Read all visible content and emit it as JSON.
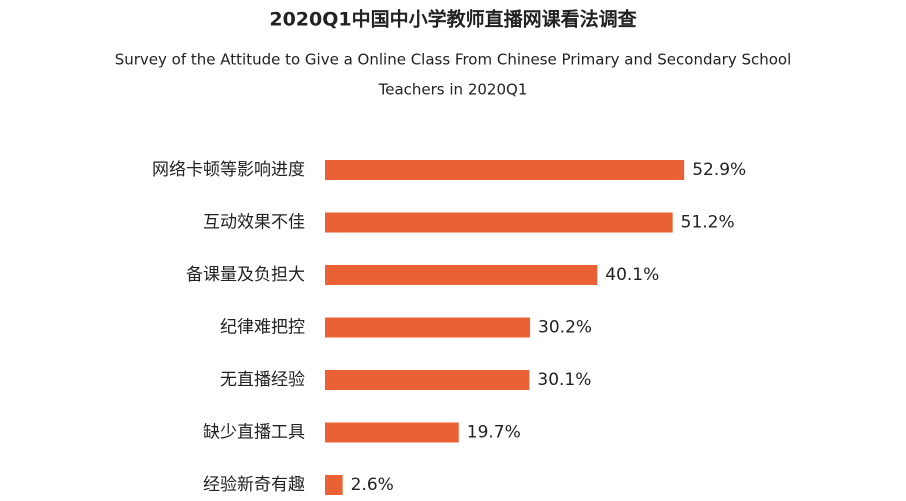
{
  "chart_data": {
    "type": "bar",
    "orientation": "horizontal",
    "title": "2020Q1中国中小学教师直播网课看法调查",
    "subtitle": [
      "Survey of the Attitude to Give a Online Class From Chinese Primary and Secondary  School",
      "Teachers in 2020Q1"
    ],
    "categories": [
      "网络卡顿等影响进度",
      "互动效果不佳",
      "备课量及负担大",
      "纪律难把控",
      "无直播经验",
      "缺少直播工具",
      "经验新奇有趣"
    ],
    "values": [
      52.9,
      51.2,
      40.1,
      30.2,
      30.1,
      19.7,
      2.6
    ],
    "value_labels": [
      "52.9%",
      "51.2%",
      "40.1%",
      "30.2%",
      "30.1%",
      "19.7%",
      "2.6%"
    ],
    "color": "#ea6136"
  }
}
